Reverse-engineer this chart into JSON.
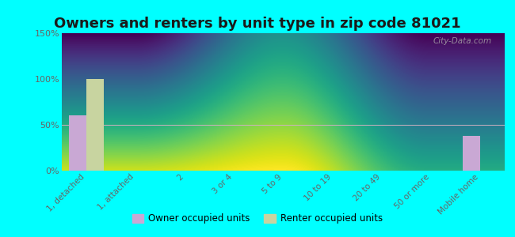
{
  "title": "Owners and renters by unit type in zip code 81021",
  "categories": [
    "1, detached",
    "1, attached",
    "2",
    "3 or 4",
    "5 to 9",
    "10 to 19",
    "20 to 49",
    "50 or more",
    "Mobile home"
  ],
  "owner_values": [
    60,
    0,
    0,
    0,
    0,
    0,
    0,
    0,
    38
  ],
  "renter_values": [
    100,
    0,
    0,
    0,
    0,
    0,
    0,
    0,
    0
  ],
  "owner_color": "#c9a8d4",
  "renter_color": "#c8d4a0",
  "background_color": "#00ffff",
  "grad_top": "#e0ede0",
  "grad_bottom": "#f8faf0",
  "ylim": [
    0,
    150
  ],
  "yticks": [
    0,
    50,
    100,
    150
  ],
  "ytick_labels": [
    "0%",
    "50%",
    "100%",
    "150%"
  ],
  "legend_owner": "Owner occupied units",
  "legend_renter": "Renter occupied units",
  "watermark": "City-Data.com",
  "title_fontsize": 13,
  "bar_width": 0.35
}
